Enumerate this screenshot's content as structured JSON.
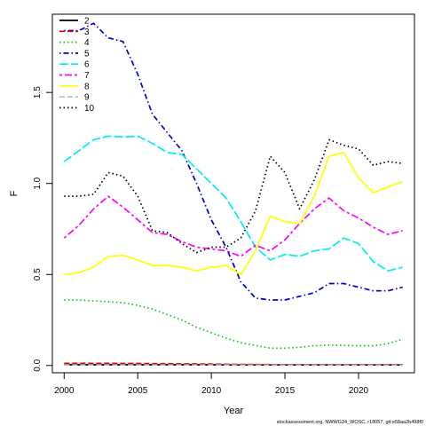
{
  "chart_data": {
    "type": "line",
    "title": "",
    "xlabel": "Year",
    "ylabel": "F",
    "xlim": [
      1999.2,
      2023.8
    ],
    "ylim": [
      -0.04,
      1.93
    ],
    "x_ticks": [
      2000,
      2005,
      2010,
      2015,
      2020
    ],
    "x_tick_labels": [
      "2000",
      "2005",
      "2010",
      "2015",
      "2020"
    ],
    "y_ticks": [
      0.0,
      0.5,
      1.0,
      1.5
    ],
    "y_tick_labels": [
      "0.0",
      "0.5",
      "1.0",
      "1.5"
    ],
    "grid": false,
    "legend_position": "top-left",
    "x": [
      2000,
      2001,
      2002,
      2003,
      2004,
      2005,
      2006,
      2007,
      2008,
      2009,
      2010,
      2011,
      2012,
      2013,
      2014,
      2015,
      2016,
      2017,
      2018,
      2019,
      2020,
      2021,
      2022,
      2023
    ],
    "series": [
      {
        "name": "2",
        "color": "#000000",
        "dash": "solid",
        "values": [
          0.004,
          0.004,
          0.004,
          0.004,
          0.004,
          0.004,
          0.004,
          0.004,
          0.004,
          0.004,
          0.004,
          0.003,
          0.003,
          0.003,
          0.003,
          0.003,
          0.003,
          0.003,
          0.003,
          0.003,
          0.003,
          0.003,
          0.003,
          0.003
        ]
      },
      {
        "name": "3",
        "color": "#df0000",
        "dash": "dashed",
        "values": [
          0.012,
          0.012,
          0.012,
          0.012,
          0.011,
          0.011,
          0.01,
          0.01,
          0.009,
          0.009,
          0.008,
          0.007,
          0.006,
          0.006,
          0.005,
          0.005,
          0.005,
          0.005,
          0.005,
          0.005,
          0.005,
          0.005,
          0.005,
          0.005
        ]
      },
      {
        "name": "4",
        "color": "#00cd00",
        "dash": "dotted",
        "values": [
          0.36,
          0.36,
          0.355,
          0.35,
          0.345,
          0.33,
          0.31,
          0.28,
          0.25,
          0.21,
          0.18,
          0.15,
          0.125,
          0.11,
          0.095,
          0.095,
          0.1,
          0.108,
          0.112,
          0.11,
          0.108,
          0.108,
          0.12,
          0.145
        ]
      },
      {
        "name": "5",
        "color": "#0000cd",
        "dash": "dotdash",
        "values": [
          1.84,
          1.84,
          1.88,
          1.8,
          1.78,
          1.6,
          1.38,
          1.28,
          1.18,
          1.0,
          0.8,
          0.65,
          0.46,
          0.37,
          0.36,
          0.36,
          0.38,
          0.4,
          0.45,
          0.45,
          0.43,
          0.41,
          0.41,
          0.43
        ]
      },
      {
        "name": "6",
        "color": "#00eeee",
        "dash": "longdash",
        "values": [
          1.12,
          1.18,
          1.24,
          1.26,
          1.255,
          1.26,
          1.22,
          1.17,
          1.16,
          1.08,
          1.0,
          0.92,
          0.79,
          0.65,
          0.58,
          0.61,
          0.6,
          0.63,
          0.64,
          0.7,
          0.67,
          0.57,
          0.52,
          0.54
        ]
      },
      {
        "name": "7",
        "color": "#ff00ff",
        "dash": "twodash",
        "values": [
          0.7,
          0.77,
          0.86,
          0.93,
          0.87,
          0.8,
          0.73,
          0.72,
          0.68,
          0.65,
          0.64,
          0.63,
          0.6,
          0.66,
          0.63,
          0.69,
          0.78,
          0.86,
          0.92,
          0.85,
          0.81,
          0.76,
          0.72,
          0.74
        ]
      },
      {
        "name": "8",
        "color": "#ffff00",
        "dash": "solid",
        "values": [
          0.5,
          0.51,
          0.54,
          0.6,
          0.605,
          0.58,
          0.55,
          0.55,
          0.54,
          0.52,
          0.54,
          0.55,
          0.5,
          0.63,
          0.82,
          0.79,
          0.78,
          0.93,
          1.15,
          1.17,
          1.03,
          0.95,
          0.98,
          1.01
        ]
      },
      {
        "name": "9",
        "color": "#bebebe",
        "dash": "dashed",
        "values": [
          0.003,
          0.003,
          0.003,
          0.003,
          0.003,
          0.003,
          0.003,
          0.003,
          0.003,
          0.003,
          0.003,
          0.003,
          0.002,
          0.002,
          0.002,
          0.002,
          0.002,
          0.002,
          0.002,
          0.002,
          0.002,
          0.002,
          0.002,
          0.002
        ]
      },
      {
        "name": "10",
        "color": "#000000",
        "dash": "dotted",
        "values": [
          0.93,
          0.93,
          0.94,
          1.06,
          1.04,
          0.93,
          0.74,
          0.73,
          0.67,
          0.62,
          0.65,
          0.65,
          0.7,
          0.85,
          1.15,
          1.06,
          0.86,
          1.02,
          1.24,
          1.21,
          1.19,
          1.1,
          1.12,
          1.11
        ]
      }
    ],
    "credit": "stockassessment.org, NWWG24_WOSC, r18057, git:e58aa2b498f0"
  }
}
